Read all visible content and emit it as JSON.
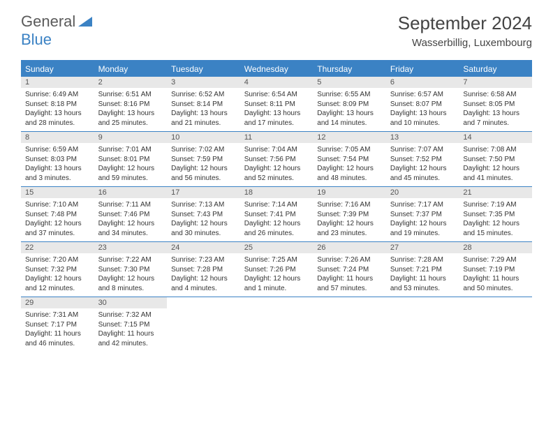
{
  "logo": {
    "text1": "General",
    "text2": "Blue"
  },
  "title": "September 2024",
  "location": "Wasserbillig, Luxembourg",
  "colors": {
    "accent": "#3b82c4",
    "header_bg": "#3b82c4",
    "header_text": "#ffffff",
    "daynum_bg": "#e8e8e8",
    "body_text": "#333333",
    "background": "#ffffff"
  },
  "day_names": [
    "Sunday",
    "Monday",
    "Tuesday",
    "Wednesday",
    "Thursday",
    "Friday",
    "Saturday"
  ],
  "weeks": [
    [
      {
        "n": "1",
        "sr": "6:49 AM",
        "ss": "8:18 PM",
        "dl": "13 hours and 28 minutes."
      },
      {
        "n": "2",
        "sr": "6:51 AM",
        "ss": "8:16 PM",
        "dl": "13 hours and 25 minutes."
      },
      {
        "n": "3",
        "sr": "6:52 AM",
        "ss": "8:14 PM",
        "dl": "13 hours and 21 minutes."
      },
      {
        "n": "4",
        "sr": "6:54 AM",
        "ss": "8:11 PM",
        "dl": "13 hours and 17 minutes."
      },
      {
        "n": "5",
        "sr": "6:55 AM",
        "ss": "8:09 PM",
        "dl": "13 hours and 14 minutes."
      },
      {
        "n": "6",
        "sr": "6:57 AM",
        "ss": "8:07 PM",
        "dl": "13 hours and 10 minutes."
      },
      {
        "n": "7",
        "sr": "6:58 AM",
        "ss": "8:05 PM",
        "dl": "13 hours and 7 minutes."
      }
    ],
    [
      {
        "n": "8",
        "sr": "6:59 AM",
        "ss": "8:03 PM",
        "dl": "13 hours and 3 minutes."
      },
      {
        "n": "9",
        "sr": "7:01 AM",
        "ss": "8:01 PM",
        "dl": "12 hours and 59 minutes."
      },
      {
        "n": "10",
        "sr": "7:02 AM",
        "ss": "7:59 PM",
        "dl": "12 hours and 56 minutes."
      },
      {
        "n": "11",
        "sr": "7:04 AM",
        "ss": "7:56 PM",
        "dl": "12 hours and 52 minutes."
      },
      {
        "n": "12",
        "sr": "7:05 AM",
        "ss": "7:54 PM",
        "dl": "12 hours and 48 minutes."
      },
      {
        "n": "13",
        "sr": "7:07 AM",
        "ss": "7:52 PM",
        "dl": "12 hours and 45 minutes."
      },
      {
        "n": "14",
        "sr": "7:08 AM",
        "ss": "7:50 PM",
        "dl": "12 hours and 41 minutes."
      }
    ],
    [
      {
        "n": "15",
        "sr": "7:10 AM",
        "ss": "7:48 PM",
        "dl": "12 hours and 37 minutes."
      },
      {
        "n": "16",
        "sr": "7:11 AM",
        "ss": "7:46 PM",
        "dl": "12 hours and 34 minutes."
      },
      {
        "n": "17",
        "sr": "7:13 AM",
        "ss": "7:43 PM",
        "dl": "12 hours and 30 minutes."
      },
      {
        "n": "18",
        "sr": "7:14 AM",
        "ss": "7:41 PM",
        "dl": "12 hours and 26 minutes."
      },
      {
        "n": "19",
        "sr": "7:16 AM",
        "ss": "7:39 PM",
        "dl": "12 hours and 23 minutes."
      },
      {
        "n": "20",
        "sr": "7:17 AM",
        "ss": "7:37 PM",
        "dl": "12 hours and 19 minutes."
      },
      {
        "n": "21",
        "sr": "7:19 AM",
        "ss": "7:35 PM",
        "dl": "12 hours and 15 minutes."
      }
    ],
    [
      {
        "n": "22",
        "sr": "7:20 AM",
        "ss": "7:32 PM",
        "dl": "12 hours and 12 minutes."
      },
      {
        "n": "23",
        "sr": "7:22 AM",
        "ss": "7:30 PM",
        "dl": "12 hours and 8 minutes."
      },
      {
        "n": "24",
        "sr": "7:23 AM",
        "ss": "7:28 PM",
        "dl": "12 hours and 4 minutes."
      },
      {
        "n": "25",
        "sr": "7:25 AM",
        "ss": "7:26 PM",
        "dl": "12 hours and 1 minute."
      },
      {
        "n": "26",
        "sr": "7:26 AM",
        "ss": "7:24 PM",
        "dl": "11 hours and 57 minutes."
      },
      {
        "n": "27",
        "sr": "7:28 AM",
        "ss": "7:21 PM",
        "dl": "11 hours and 53 minutes."
      },
      {
        "n": "28",
        "sr": "7:29 AM",
        "ss": "7:19 PM",
        "dl": "11 hours and 50 minutes."
      }
    ],
    [
      {
        "n": "29",
        "sr": "7:31 AM",
        "ss": "7:17 PM",
        "dl": "11 hours and 46 minutes."
      },
      {
        "n": "30",
        "sr": "7:32 AM",
        "ss": "7:15 PM",
        "dl": "11 hours and 42 minutes."
      },
      null,
      null,
      null,
      null,
      null
    ]
  ],
  "labels": {
    "sunrise": "Sunrise:",
    "sunset": "Sunset:",
    "daylight": "Daylight:"
  }
}
